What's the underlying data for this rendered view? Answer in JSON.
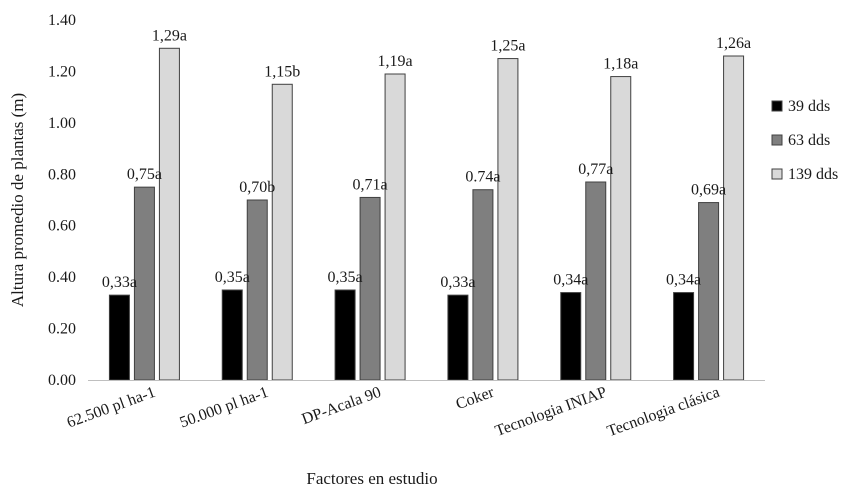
{
  "chart_data": {
    "type": "bar",
    "xlabel": "Factores en estudio",
    "ylabel": "Altura promedio de plantas (m)",
    "ylim": [
      0,
      1.4
    ],
    "ytick_step": 0.2,
    "yticks": [
      "0.00",
      "0.20",
      "0.40",
      "0.60",
      "0.80",
      "1.00",
      "1.20",
      "1.40"
    ],
    "grid": false,
    "legend_position": "right",
    "categories": [
      "62.500 pl ha-1",
      "50.000 pl ha-1",
      "DP-Acala 90",
      "Coker",
      "Tecnologia INIAP",
      "Tecnologia clásica"
    ],
    "series": [
      {
        "name": "39 dds",
        "color": "#000000",
        "values": [
          0.33,
          0.35,
          0.35,
          0.33,
          0.34,
          0.34
        ],
        "labels": [
          "0,33a",
          "0,35a",
          "0,35a",
          "0,33a",
          "0,34a",
          "0,34a"
        ]
      },
      {
        "name": "63 dds",
        "color": "#7f7f7f",
        "values": [
          0.75,
          0.7,
          0.71,
          0.74,
          0.77,
          0.69
        ],
        "labels": [
          "0,75a",
          "0,70b",
          "0,71a",
          "0.74a",
          "0,77a",
          "0,69a"
        ]
      },
      {
        "name": "139 dds",
        "color": "#d9d9d9",
        "values": [
          1.29,
          1.15,
          1.19,
          1.25,
          1.18,
          1.26
        ],
        "labels": [
          "1,29a",
          "1,15b",
          "1,19a",
          "1,25a",
          "1,18a",
          "1,26a"
        ]
      }
    ]
  }
}
